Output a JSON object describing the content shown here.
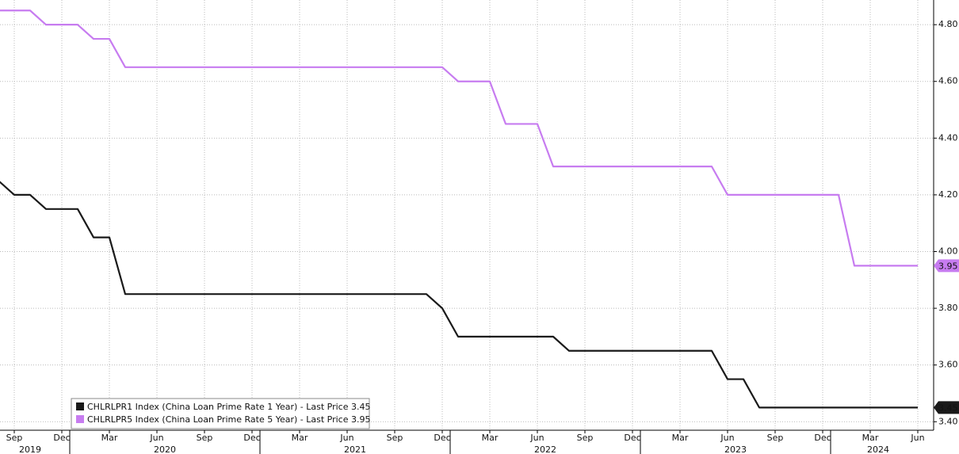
{
  "chart_data": {
    "type": "line",
    "categories": [
      null,
      "Sep",
      null,
      null,
      "Dec",
      null,
      null,
      "Mar",
      null,
      null,
      "Jun",
      null,
      null,
      "Sep",
      null,
      null,
      "Dec",
      null,
      null,
      "Mar",
      null,
      null,
      "Jun",
      null,
      null,
      "Sep",
      null,
      null,
      "Dec",
      null,
      null,
      "Mar",
      null,
      null,
      "Jun",
      null,
      null,
      "Sep",
      null,
      null,
      "Dec",
      null,
      null,
      "Mar",
      null,
      null,
      "Jun",
      null,
      null,
      "Sep",
      null,
      null,
      "Dec",
      null,
      null,
      "Mar",
      null,
      null,
      "Jun"
    ],
    "x_groups": [
      {
        "label": "2019",
        "count": 5
      },
      {
        "label": "2020",
        "count": 12
      },
      {
        "label": "2021",
        "count": 12
      },
      {
        "label": "2022",
        "count": 12
      },
      {
        "label": "2023",
        "count": 12
      },
      {
        "label": "2024",
        "count": 6
      }
    ],
    "series": [
      {
        "name": "CHLRLPR1 Index (China Loan Prime Rate 1 Year) - Last Price 3.45",
        "color": "#1a1a1a",
        "last_label": "3.45",
        "values": [
          4.25,
          4.2,
          4.2,
          4.15,
          4.15,
          4.15,
          4.05,
          4.05,
          3.85,
          3.85,
          3.85,
          3.85,
          3.85,
          3.85,
          3.85,
          3.85,
          3.85,
          3.85,
          3.85,
          3.85,
          3.85,
          3.85,
          3.85,
          3.85,
          3.85,
          3.85,
          3.85,
          3.85,
          3.8,
          3.7,
          3.7,
          3.7,
          3.7,
          3.7,
          3.7,
          3.7,
          3.65,
          3.65,
          3.65,
          3.65,
          3.65,
          3.65,
          3.65,
          3.65,
          3.65,
          3.65,
          3.55,
          3.55,
          3.45,
          3.45,
          3.45,
          3.45,
          3.45,
          3.45,
          3.45,
          3.45,
          3.45,
          3.45,
          3.45
        ]
      },
      {
        "name": "CHLRLPR5 Index (China Loan Prime Rate 5 Year) - Last Price 3.95",
        "color": "#c77cf0",
        "last_label": "3.95",
        "values": [
          4.85,
          4.85,
          4.85,
          4.8,
          4.8,
          4.8,
          4.75,
          4.75,
          4.65,
          4.65,
          4.65,
          4.65,
          4.65,
          4.65,
          4.65,
          4.65,
          4.65,
          4.65,
          4.65,
          4.65,
          4.65,
          4.65,
          4.65,
          4.65,
          4.65,
          4.65,
          4.65,
          4.65,
          4.65,
          4.6,
          4.6,
          4.6,
          4.45,
          4.45,
          4.45,
          4.3,
          4.3,
          4.3,
          4.3,
          4.3,
          4.3,
          4.3,
          4.3,
          4.3,
          4.3,
          4.3,
          4.2,
          4.2,
          4.2,
          4.2,
          4.2,
          4.2,
          4.2,
          4.2,
          3.95,
          3.95,
          3.95,
          3.95,
          3.95
        ]
      }
    ],
    "ylim": [
      3.37,
      4.887
    ],
    "yticks": [
      {
        "value": 3.4,
        "label": "3.40"
      },
      {
        "value": 3.6,
        "label": "3.60"
      },
      {
        "value": 3.8,
        "label": "3.80"
      },
      {
        "value": 4.0,
        "label": "4.00"
      },
      {
        "value": 4.2,
        "label": "4.20"
      },
      {
        "value": 4.4,
        "label": "4.40"
      },
      {
        "value": 4.6,
        "label": "4.60"
      },
      {
        "value": 4.8,
        "label": "4.80"
      }
    ],
    "grid": true,
    "legend": "lower-left"
  }
}
